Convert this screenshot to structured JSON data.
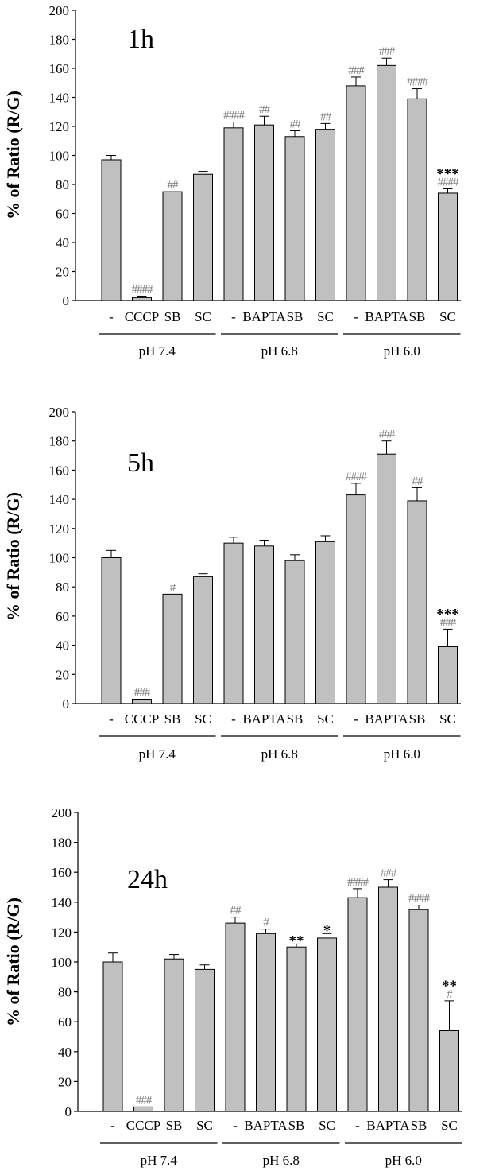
{
  "chart_data": [
    {
      "type": "bar",
      "panel_label": "1h",
      "ylabel": "% of Ratio (R/G)",
      "ylim": [
        0,
        200
      ],
      "yticks": [
        "0",
        "20",
        "40",
        "60",
        "80",
        "100",
        "120",
        "140",
        "160",
        "180",
        "200"
      ],
      "groups": [
        {
          "label": "pH 7.4",
          "categories": [
            "-",
            "CCCP",
            "SB",
            "SC"
          ],
          "values": [
            97,
            2,
            75,
            87
          ],
          "errors": [
            3,
            1,
            0,
            2
          ],
          "marks": [
            [
              "",
              ""
            ],
            [
              "####",
              ""
            ],
            [
              "##",
              ""
            ],
            [
              "",
              ""
            ]
          ]
        },
        {
          "label": "pH 6.8",
          "categories": [
            "-",
            "BAPTA",
            "SB",
            "SC"
          ],
          "values": [
            119,
            121,
            113,
            118
          ],
          "errors": [
            4,
            6,
            4,
            4
          ],
          "marks": [
            [
              "####",
              ""
            ],
            [
              "##",
              ""
            ],
            [
              "##",
              ""
            ],
            [
              "##",
              ""
            ]
          ]
        },
        {
          "label": "pH 6.0",
          "categories": [
            "-",
            "BAPTA",
            "SB",
            "SC"
          ],
          "values": [
            148,
            162,
            139,
            74
          ],
          "errors": [
            6,
            5,
            7,
            3
          ],
          "marks": [
            [
              "###",
              ""
            ],
            [
              "###",
              ""
            ],
            [
              "####",
              ""
            ],
            [
              "####",
              "***"
            ]
          ]
        }
      ]
    },
    {
      "type": "bar",
      "panel_label": "5h",
      "ylabel": "% of Ratio (R/G)",
      "ylim": [
        0,
        200
      ],
      "yticks": [
        "0",
        "20",
        "40",
        "60",
        "80",
        "100",
        "120",
        "140",
        "160",
        "180",
        "200"
      ],
      "groups": [
        {
          "label": "pH 7.4",
          "categories": [
            "-",
            "CCCP",
            "SB",
            "SC"
          ],
          "values": [
            100,
            3,
            75,
            87
          ],
          "errors": [
            5,
            0,
            0,
            2
          ],
          "marks": [
            [
              "",
              ""
            ],
            [
              "###",
              ""
            ],
            [
              "#",
              ""
            ],
            [
              "",
              ""
            ]
          ]
        },
        {
          "label": "pH 6.8",
          "categories": [
            "-",
            "BAPTA",
            "SB",
            "SC"
          ],
          "values": [
            110,
            108,
            98,
            111
          ],
          "errors": [
            4,
            4,
            4,
            4
          ],
          "marks": [
            [
              "",
              ""
            ],
            [
              "",
              ""
            ],
            [
              "",
              ""
            ],
            [
              "",
              ""
            ]
          ]
        },
        {
          "label": "pH 6.0",
          "categories": [
            "-",
            "BAPTA",
            "SB",
            "SC"
          ],
          "values": [
            143,
            171,
            139,
            39
          ],
          "errors": [
            8,
            9,
            9,
            12
          ],
          "marks": [
            [
              "####",
              ""
            ],
            [
              "###",
              ""
            ],
            [
              "##",
              ""
            ],
            [
              "###",
              "***"
            ]
          ]
        }
      ]
    },
    {
      "type": "bar",
      "panel_label": "24h",
      "ylabel": "% of Ratio (R/G)",
      "ylim": [
        0,
        200
      ],
      "yticks": [
        "0",
        "20",
        "40",
        "60",
        "80",
        "100",
        "120",
        "140",
        "160",
        "180",
        "200"
      ],
      "groups": [
        {
          "label": "pH 7.4",
          "categories": [
            "-",
            "CCCP",
            "SB",
            "SC"
          ],
          "values": [
            100,
            3,
            102,
            95
          ],
          "errors": [
            6,
            0,
            3,
            3
          ],
          "marks": [
            [
              "",
              ""
            ],
            [
              "###",
              ""
            ],
            [
              "",
              ""
            ],
            [
              "",
              ""
            ]
          ]
        },
        {
          "label": "pH 6.8",
          "categories": [
            "-",
            "BAPTA",
            "SB",
            "SC"
          ],
          "values": [
            126,
            119,
            110,
            116
          ],
          "errors": [
            4,
            3,
            2,
            3
          ],
          "marks": [
            [
              "##",
              ""
            ],
            [
              "#",
              ""
            ],
            [
              "",
              "**"
            ],
            [
              "",
              "*"
            ]
          ]
        },
        {
          "label": "pH 6.0",
          "categories": [
            "-",
            "BAPTA",
            "SB",
            "SC"
          ],
          "values": [
            143,
            150,
            135,
            54
          ],
          "errors": [
            6,
            5,
            3,
            20
          ],
          "marks": [
            [
              "####",
              ""
            ],
            [
              "###",
              ""
            ],
            [
              "####",
              ""
            ],
            [
              "#",
              "**"
            ]
          ]
        }
      ]
    }
  ],
  "colors": {
    "bar_fill": "#c0c0c0",
    "bar_stroke": "#000000",
    "hash_marks": "#7a7a7a"
  }
}
